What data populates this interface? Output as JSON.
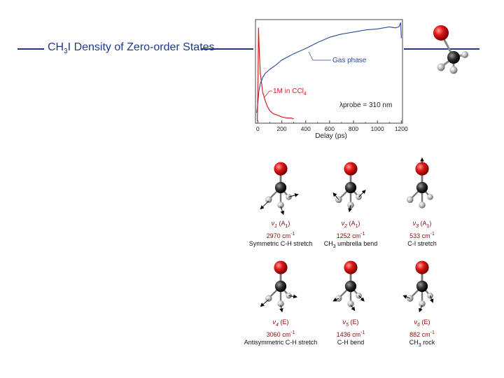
{
  "slide": {
    "title_pre": "CH",
    "title_sub": "3",
    "title_post": "I Density of Zero-order States",
    "colors": {
      "rule": "#1f3a8a",
      "text_red": "#8b0a0a"
    }
  },
  "molecule_icon": "ch3i-molecule-icon",
  "chart_data": {
    "type": "line",
    "xlabel": "Delay (ps)",
    "x_ticks": [
      0,
      200,
      400,
      600,
      800,
      1000,
      1200
    ],
    "xlim": [
      -20,
      1210
    ],
    "ylim": [
      0,
      1
    ],
    "annotation_probe": "λprobe = 310 nm",
    "series": [
      {
        "name": "Gas phase",
        "color": "#2c4a9a",
        "x": [
          -10,
          0,
          10,
          20,
          40,
          60,
          80,
          100,
          150,
          200,
          250,
          300,
          400,
          500,
          600,
          700,
          800,
          900,
          1000,
          1100,
          1150,
          1180,
          1195,
          1200
        ],
        "y": [
          0.1,
          0.2,
          0.32,
          0.38,
          0.44,
          0.48,
          0.5,
          0.52,
          0.56,
          0.61,
          0.64,
          0.67,
          0.72,
          0.78,
          0.83,
          0.86,
          0.88,
          0.9,
          0.91,
          0.93,
          0.92,
          0.93,
          0.97,
          0.82
        ]
      },
      {
        "name": "1M in CCl4",
        "label_pre": "1M in CCl",
        "label_sub": "4",
        "color": "#d62020",
        "x": [
          -5,
          0,
          5,
          10,
          15,
          20,
          30,
          40,
          60,
          80,
          100,
          130,
          160,
          200,
          240,
          280,
          300
        ],
        "y": [
          0.02,
          0.35,
          0.92,
          0.76,
          0.6,
          0.48,
          0.4,
          0.3,
          0.22,
          0.16,
          0.12,
          0.09,
          0.08,
          0.06,
          0.05,
          0.05,
          0.04
        ]
      }
    ]
  },
  "modes": [
    {
      "name": "ν1",
      "sym": "(A1)",
      "freq": "2970 cm-1",
      "desc": "Symmetric C-H stretch"
    },
    {
      "name": "ν2",
      "sym": "(A1)",
      "freq": "1252 cm-1",
      "desc": "CH3 umbrella bend"
    },
    {
      "name": "ν3",
      "sym": "(A1)",
      "freq": "533 cm-1",
      "desc": "C-I stretch"
    },
    {
      "name": "ν4",
      "sym": "(E)",
      "freq": "3060 cm-1",
      "desc": "Antisymmetric C-H stretch"
    },
    {
      "name": "ν5",
      "sym": "(E)",
      "freq": "1436 cm-1",
      "desc": "C-H bend"
    },
    {
      "name": "ν6",
      "sym": "(E)",
      "freq": "882 cm-1",
      "desc": "CH3 rock"
    }
  ]
}
